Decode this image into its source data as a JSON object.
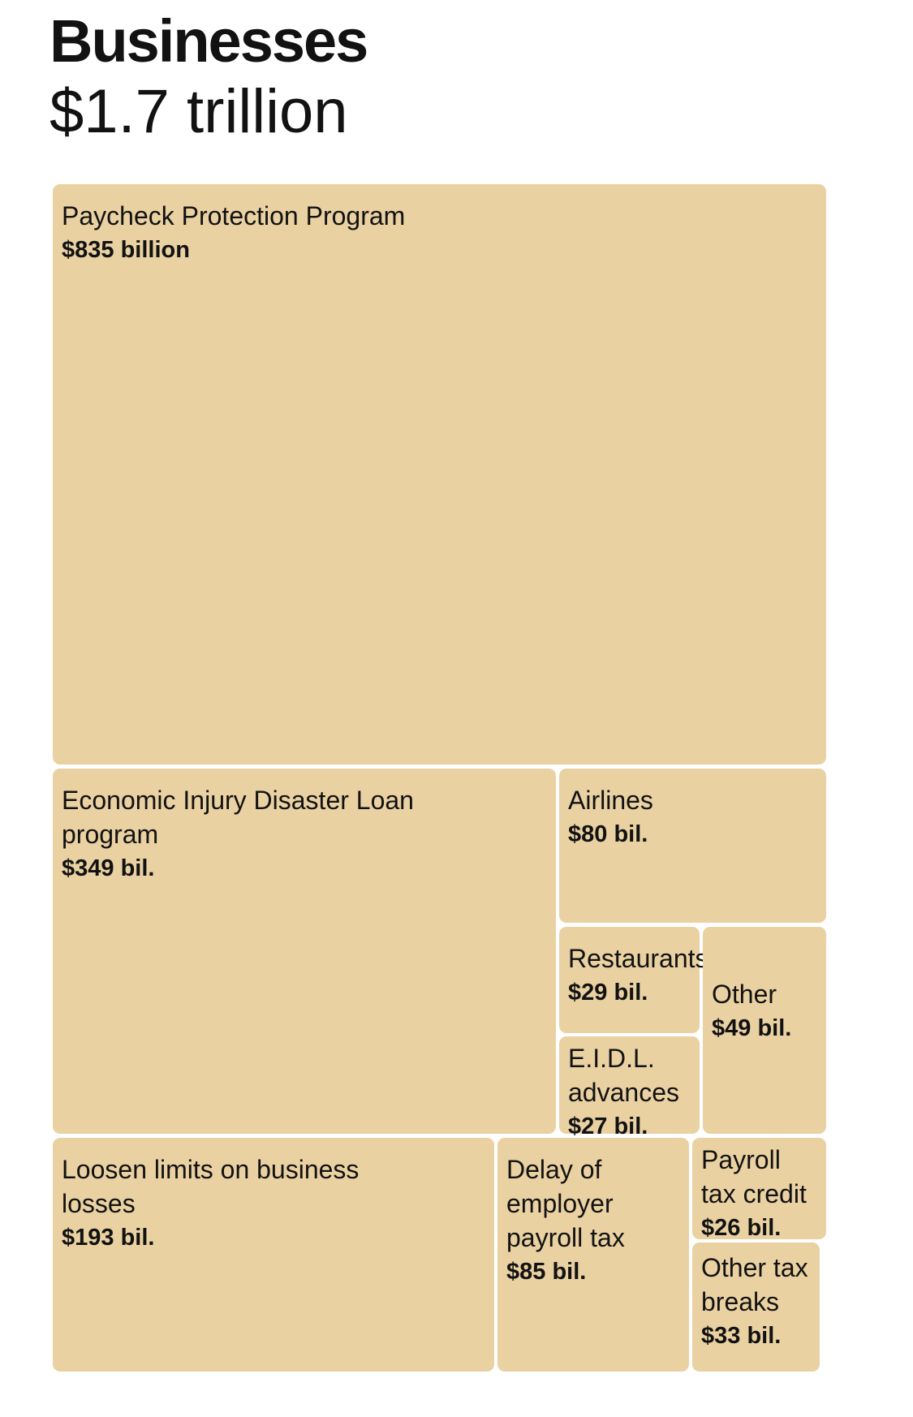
{
  "header": {
    "title": "Businesses",
    "total": "$1.7 trillion"
  },
  "chart_data": {
    "type": "treemap",
    "title": "Businesses",
    "subtitle": "$1.7 trillion",
    "unit": "billion USD",
    "items": [
      {
        "key": "ppp",
        "label": "Paycheck Protection Program",
        "value_label": "$835 billion",
        "value": 835
      },
      {
        "key": "eidl",
        "label": "Economic Injury Disaster Loan program",
        "value_label": "$349 bil.",
        "value": 349
      },
      {
        "key": "airlines",
        "label": "Airlines",
        "value_label": "$80 bil.",
        "value": 80
      },
      {
        "key": "restaurants",
        "label": "Restaurants",
        "value_label": "$29 bil.",
        "value": 29
      },
      {
        "key": "other",
        "label": "Other",
        "value_label": "$49 bil.",
        "value": 49
      },
      {
        "key": "eidl_adv",
        "label": "E.I.D.L. advances",
        "value_label": "$27 bil.",
        "value": 27
      },
      {
        "key": "loss_limits",
        "label": "Loosen limits on business losses",
        "value_label": "$193 bil.",
        "value": 193
      },
      {
        "key": "payroll_delay",
        "label": "Delay of employer payroll tax",
        "value_label": "$85 bil.",
        "value": 85
      },
      {
        "key": "payroll_credit",
        "label": "Payroll tax credit",
        "value_label": "$26 bil.",
        "value": 26
      },
      {
        "key": "other_tax",
        "label": "Other tax breaks",
        "value_label": "$33 bil.",
        "value": 33
      }
    ],
    "colors": {
      "tile": "#ead1a2",
      "text": "#121212"
    }
  }
}
